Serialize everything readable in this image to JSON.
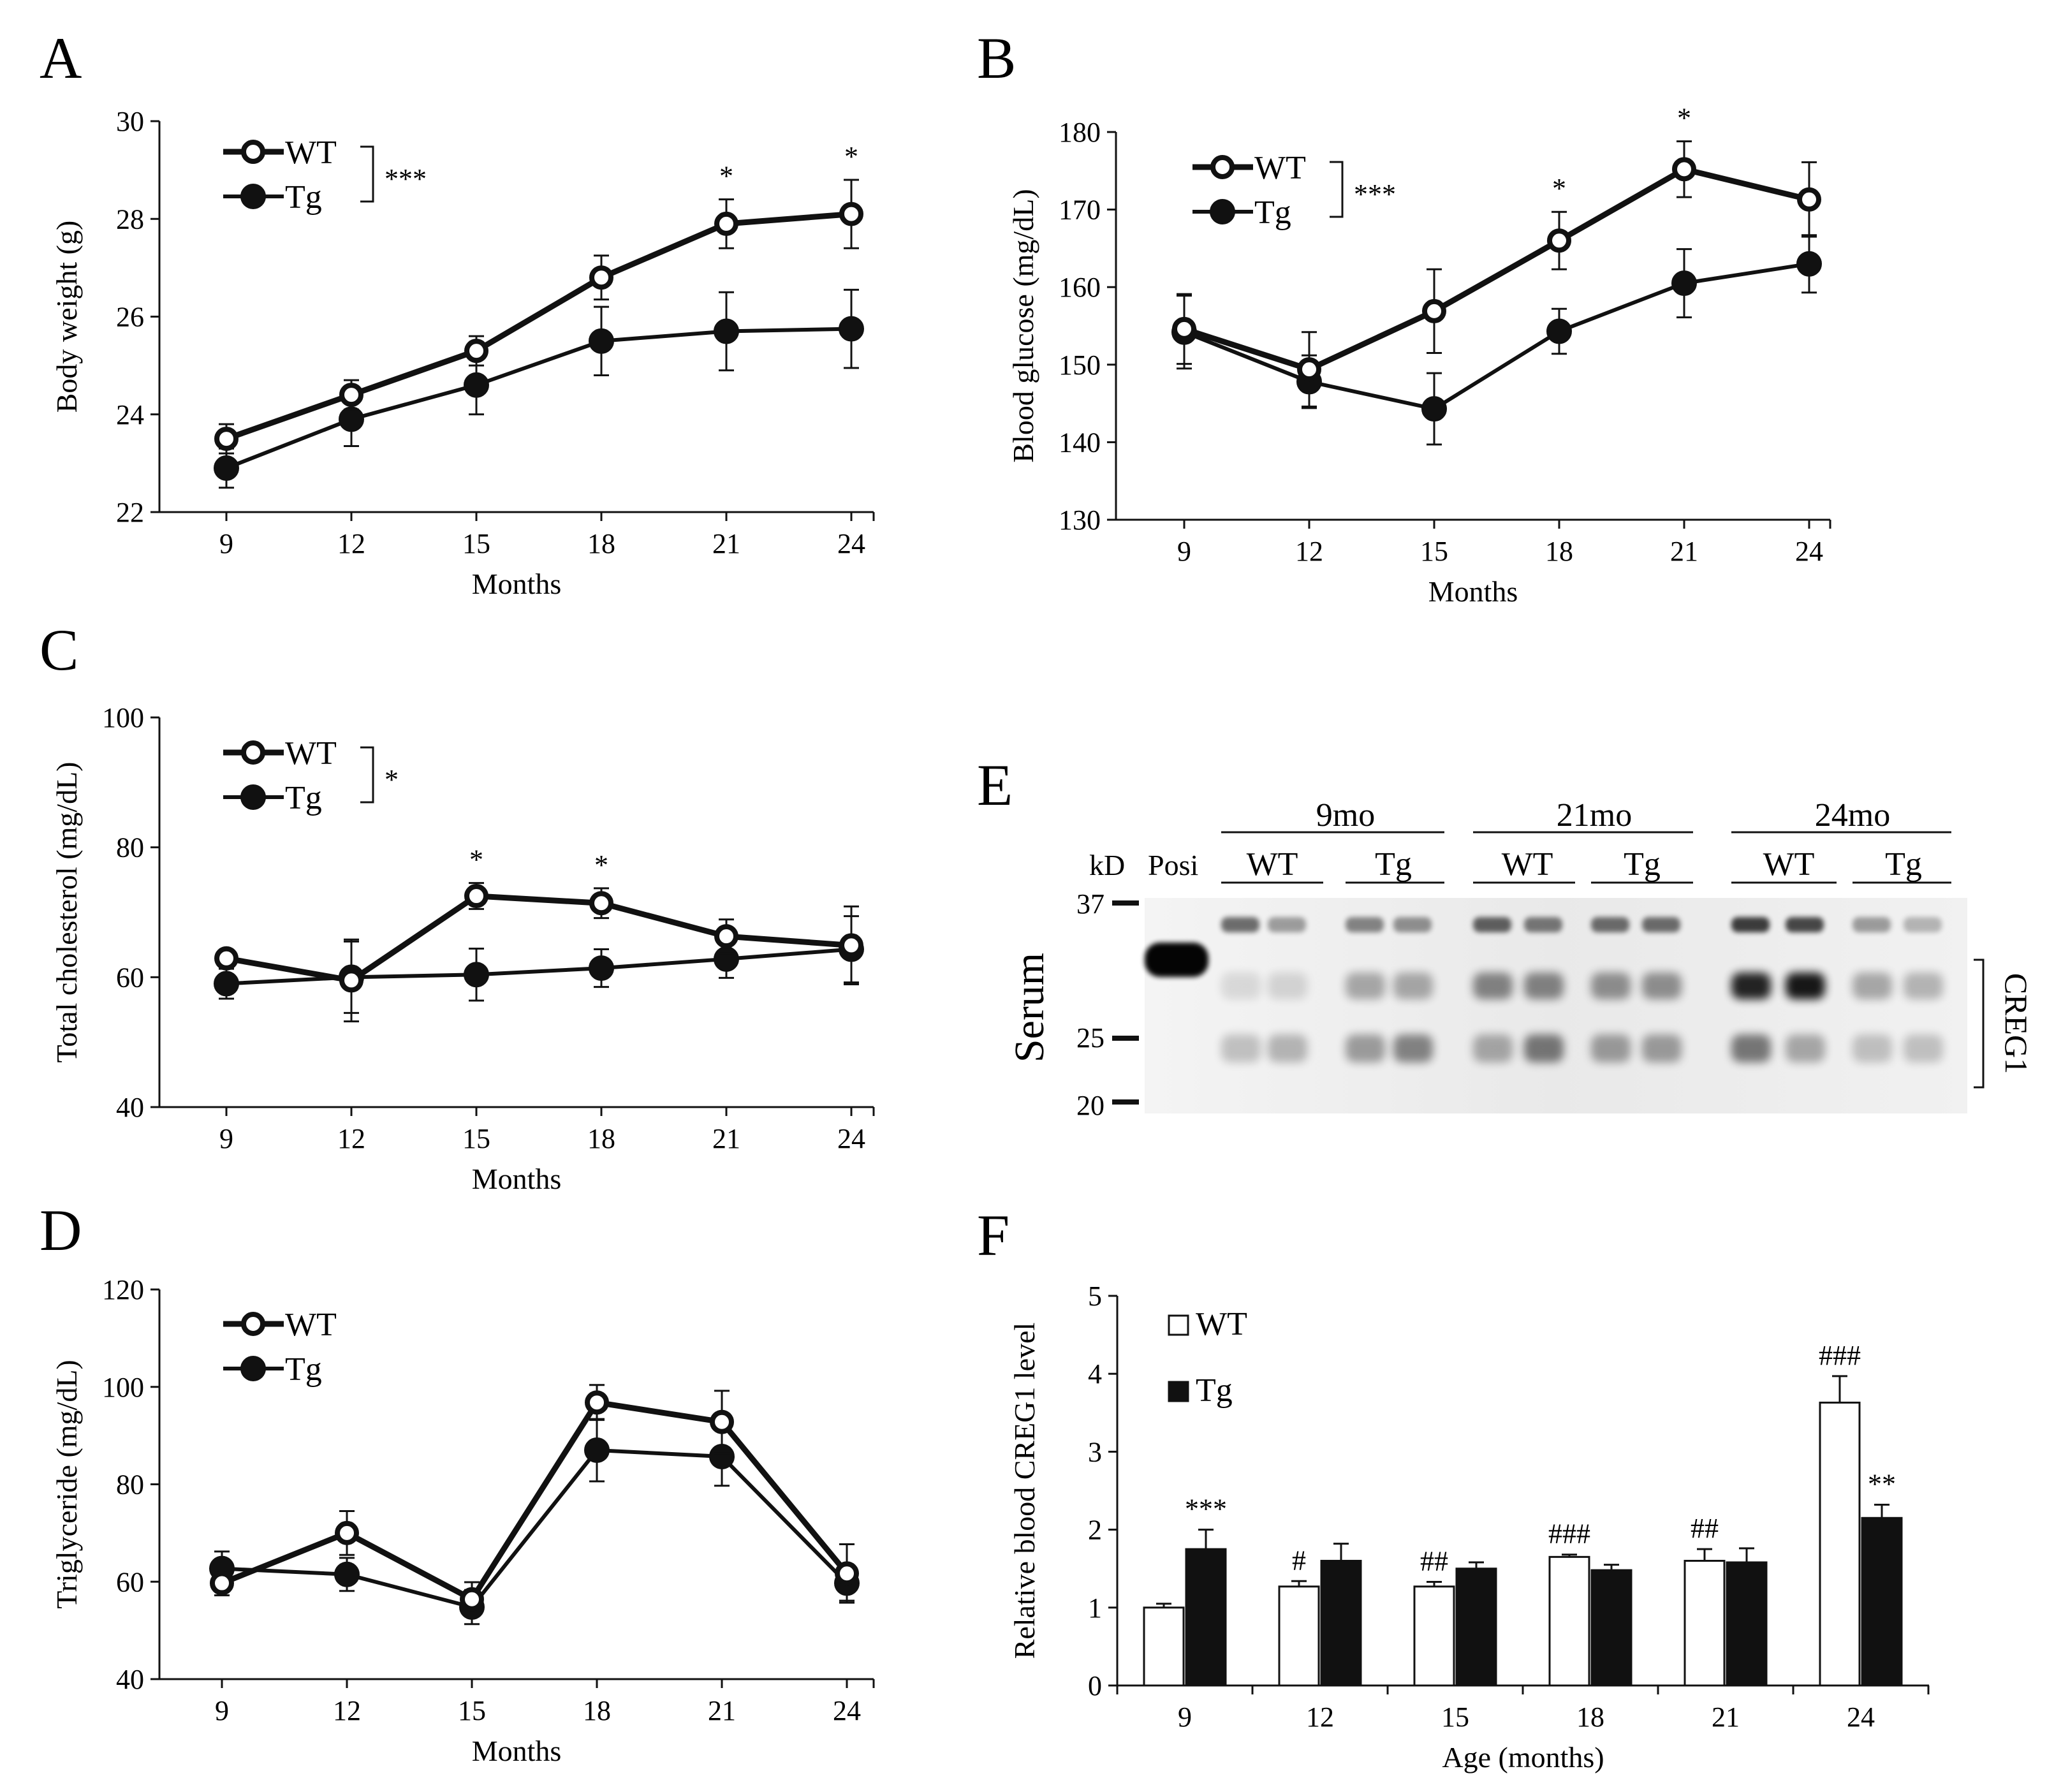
{
  "chart_data": [
    {
      "panel": "A",
      "type": "line",
      "xlabel": "Months",
      "ylabel": "Body weight (g)",
      "x": [
        9,
        12,
        15,
        18,
        21,
        24
      ],
      "ylim": [
        22,
        30
      ],
      "yticks": [
        22,
        24,
        26,
        28,
        30
      ],
      "legend": [
        {
          "name": "WT",
          "style": "open"
        },
        {
          "name": "Tg",
          "style": "filled"
        }
      ],
      "legend_sig": "***",
      "series": [
        {
          "name": "WT",
          "values": [
            23.5,
            24.4,
            25.3,
            26.8,
            27.9,
            28.1
          ],
          "err": [
            0.3,
            0.3,
            0.3,
            0.45,
            0.5,
            0.7
          ],
          "sig": [
            "",
            "",
            "",
            "",
            "*",
            "*"
          ]
        },
        {
          "name": "Tg",
          "values": [
            22.9,
            23.9,
            24.6,
            25.5,
            25.7,
            25.75
          ],
          "err": [
            0.4,
            0.55,
            0.6,
            0.7,
            0.8,
            0.8
          ]
        }
      ]
    },
    {
      "panel": "B",
      "type": "line",
      "xlabel": "Months",
      "ylabel": "Blood glucose (mg/dL)",
      "x": [
        9,
        12,
        15,
        18,
        21,
        24
      ],
      "ylim": [
        130,
        180
      ],
      "yticks": [
        130,
        140,
        150,
        160,
        170,
        180
      ],
      "legend": [
        {
          "name": "WT",
          "style": "open"
        },
        {
          "name": "Tg",
          "style": "filled"
        }
      ],
      "legend_sig": "***",
      "series": [
        {
          "name": "WT",
          "values": [
            154.6,
            149.4,
            156.9,
            166.0,
            175.2,
            171.3
          ],
          "err": [
            4.5,
            4.8,
            5.4,
            3.7,
            3.6,
            4.8
          ],
          "sig": [
            "",
            "",
            "",
            "*",
            "*",
            ""
          ]
        },
        {
          "name": "Tg",
          "values": [
            154.2,
            147.8,
            144.3,
            154.3,
            160.5,
            163.0
          ],
          "err": [
            4.7,
            3.4,
            4.6,
            2.9,
            4.4,
            3.7
          ]
        }
      ]
    },
    {
      "panel": "C",
      "type": "line",
      "xlabel": "Months",
      "ylabel": "Total cholesterol (mg/dL)",
      "x": [
        9,
        12,
        15,
        18,
        21,
        24
      ],
      "ylim": [
        40,
        100
      ],
      "yticks": [
        40,
        60,
        80,
        100
      ],
      "legend": [
        {
          "name": "WT",
          "style": "open"
        },
        {
          "name": "Tg",
          "style": "filled"
        }
      ],
      "legend_sig": "*",
      "series": [
        {
          "name": "WT",
          "values": [
            62.9,
            59.5,
            72.5,
            71.4,
            66.3,
            64.9
          ],
          "err": [
            1.2,
            6.3,
            2.0,
            2.3,
            2.6,
            6.0
          ],
          "sig": [
            "",
            "",
            "*",
            "*",
            "",
            ""
          ]
        },
        {
          "name": "Tg",
          "values": [
            59.0,
            60.0,
            60.4,
            61.4,
            62.8,
            64.3
          ],
          "err": [
            2.3,
            5.5,
            4.0,
            2.9,
            2.9,
            5.1
          ]
        }
      ]
    },
    {
      "panel": "D",
      "type": "line",
      "xlabel": "Months",
      "ylabel": "Triglyceride (mg/dL)",
      "x": [
        9,
        12,
        15,
        18,
        21,
        24
      ],
      "ylim": [
        40,
        120
      ],
      "yticks": [
        40,
        60,
        80,
        100,
        120
      ],
      "legend": [
        {
          "name": "WT",
          "style": "open"
        },
        {
          "name": "Tg",
          "style": "filled"
        }
      ],
      "series": [
        {
          "name": "WT",
          "values": [
            59.7,
            70.0,
            56.4,
            96.8,
            92.8,
            61.7
          ],
          "err": [
            2.5,
            4.5,
            3.5,
            3.6,
            6.4,
            6.0
          ]
        },
        {
          "name": "Tg",
          "values": [
            62.7,
            61.5,
            54.8,
            87.0,
            85.7,
            59.7
          ],
          "err": [
            3.5,
            3.4,
            3.5,
            6.4,
            6.0,
            3.6
          ]
        }
      ]
    },
    {
      "panel": "F",
      "type": "bar",
      "xlabel": "Age (months)",
      "ylabel": "Relative blood CREG1 level",
      "categories": [
        "9",
        "12",
        "15",
        "18",
        "21",
        "24"
      ],
      "ylim": [
        0,
        5
      ],
      "yticks": [
        0,
        1,
        2,
        3,
        4,
        5
      ],
      "legend": [
        {
          "name": "WT",
          "style": "open"
        },
        {
          "name": "Tg",
          "style": "filled"
        }
      ],
      "series": [
        {
          "name": "WT",
          "values": [
            1.0,
            1.27,
            1.27,
            1.65,
            1.6,
            3.63
          ],
          "err": [
            0.05,
            0.07,
            0.06,
            0.03,
            0.15,
            0.34
          ],
          "sig": [
            "",
            "#",
            "##",
            "###",
            "##",
            "###"
          ]
        },
        {
          "name": "Tg",
          "values": [
            1.75,
            1.6,
            1.5,
            1.48,
            1.58,
            2.15
          ],
          "err": [
            0.25,
            0.22,
            0.08,
            0.07,
            0.18,
            0.17
          ],
          "sig": [
            "***",
            "",
            "",
            "",
            "",
            "**"
          ]
        }
      ]
    }
  ],
  "panel_labels": {
    "A": "A",
    "B": "B",
    "C": "C",
    "D": "D",
    "E": "E",
    "F": "F"
  },
  "blot": {
    "sample_label": "Serum",
    "kd_label": "kD",
    "posi_label": "Posi",
    "band_label": "CREG1",
    "markers": [
      "37",
      "25",
      "20"
    ],
    "groups": [
      "9mo",
      "21mo",
      "24mo"
    ],
    "subgroups": [
      "WT",
      "Tg",
      "WT",
      "Tg",
      "WT",
      "Tg"
    ]
  }
}
